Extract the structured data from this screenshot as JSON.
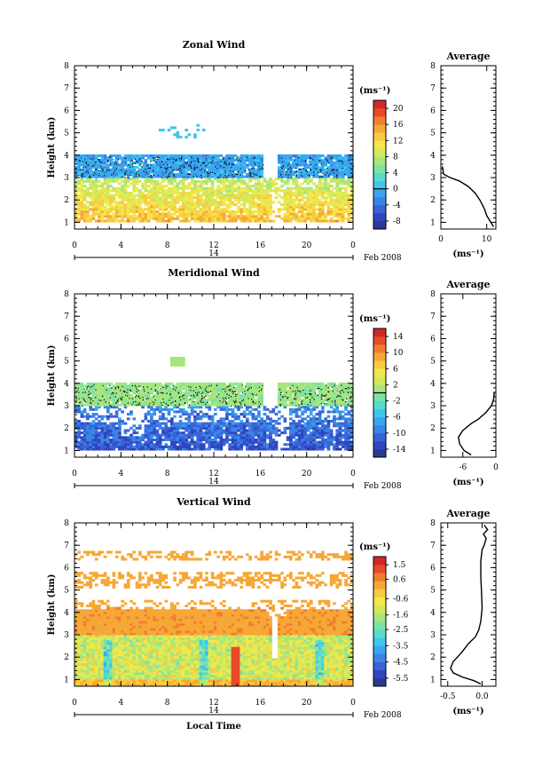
{
  "chart_data": [
    {
      "type": "heatmap",
      "title": "Zonal Wind",
      "ylabel": "Height (km)",
      "xlim": [
        0,
        24
      ],
      "ylim": [
        0.7,
        8
      ],
      "x_ticks": [
        "0",
        "4",
        "8",
        "12",
        "16",
        "20",
        "0"
      ],
      "y_ticks": [
        "1",
        "2",
        "3",
        "4",
        "5",
        "6",
        "7",
        "8"
      ],
      "date_tick": "14",
      "date_label": "Feb 2008",
      "colorbar": {
        "unit": "(ms⁻¹)",
        "range": [
          -10,
          22
        ],
        "ticks": [
          "-8",
          "-4",
          "0",
          "4",
          "8",
          "12",
          "16",
          "20"
        ]
      },
      "profile": {
        "title": "Average",
        "xlabel": "(ms⁻¹)",
        "xlim": [
          0,
          12
        ],
        "x_ticks": [
          "0",
          "10"
        ],
        "points": [
          [
            11.5,
            0.8
          ],
          [
            10.9,
            1.0
          ],
          [
            10,
            1.3
          ],
          [
            9.5,
            1.6
          ],
          [
            8.5,
            2.0
          ],
          [
            7.5,
            2.3
          ],
          [
            6,
            2.6
          ],
          [
            4,
            2.85
          ],
          [
            2,
            3.0
          ],
          [
            0.6,
            3.15
          ],
          [
            0.3,
            3.5
          ]
        ]
      }
    },
    {
      "type": "heatmap",
      "title": "Meridional Wind",
      "ylabel": "Height (km)",
      "xlim": [
        0,
        24
      ],
      "ylim": [
        0.7,
        8
      ],
      "x_ticks": [
        "0",
        "4",
        "8",
        "12",
        "16",
        "20",
        "0"
      ],
      "y_ticks": [
        "1",
        "2",
        "3",
        "4",
        "5",
        "6",
        "7",
        "8"
      ],
      "date_tick": "14",
      "date_label": "Feb 2008",
      "colorbar": {
        "unit": "(ms⁻¹)",
        "range": [
          -16,
          16
        ],
        "ticks": [
          "-14",
          "-10",
          "-6",
          "-2",
          "2",
          "6",
          "10",
          "14"
        ]
      },
      "profile": {
        "title": "Average",
        "xlabel": "(ms⁻¹)",
        "xlim": [
          -10,
          0
        ],
        "x_ticks": [
          "-6",
          "0"
        ],
        "points": [
          [
            -4.5,
            0.8
          ],
          [
            -5.8,
            1.0
          ],
          [
            -6.6,
            1.3
          ],
          [
            -6.8,
            1.6
          ],
          [
            -6,
            1.9
          ],
          [
            -4.5,
            2.2
          ],
          [
            -3.2,
            2.4
          ],
          [
            -1.8,
            2.7
          ],
          [
            -0.8,
            3.0
          ],
          [
            -0.4,
            3.3
          ],
          [
            -0.3,
            3.6
          ]
        ]
      }
    },
    {
      "type": "heatmap",
      "title": "Vertical Wind",
      "ylabel": "Height (km)",
      "xlabel": "Local Time",
      "xlim": [
        0,
        24
      ],
      "ylim": [
        0.7,
        8
      ],
      "x_ticks": [
        "0",
        "4",
        "8",
        "12",
        "16",
        "20",
        "0"
      ],
      "y_ticks": [
        "1",
        "2",
        "3",
        "4",
        "5",
        "6",
        "7",
        "8"
      ],
      "date_tick": "14",
      "date_label": "Feb 2008",
      "colorbar": {
        "unit": "(ms⁻¹)",
        "range": [
          -6.0,
          2.0
        ],
        "ticks": [
          "-5.5",
          "-4.5",
          "-3.5",
          "-2.5",
          "-1.6",
          "-0.6",
          "0.6",
          "1.5"
        ]
      },
      "profile": {
        "title": "Average",
        "xlabel": "(ms⁻¹)",
        "xlim": [
          -0.6,
          0.2
        ],
        "x_ticks": [
          "-0.5",
          "0.0"
        ],
        "points": [
          [
            -0.02,
            0.8
          ],
          [
            -0.12,
            0.95
          ],
          [
            -0.28,
            1.1
          ],
          [
            -0.42,
            1.3
          ],
          [
            -0.46,
            1.5
          ],
          [
            -0.42,
            1.8
          ],
          [
            -0.3,
            2.2
          ],
          [
            -0.2,
            2.6
          ],
          [
            -0.1,
            2.9
          ],
          [
            -0.05,
            3.2
          ],
          [
            -0.02,
            3.6
          ],
          [
            0.0,
            4.2
          ],
          [
            -0.01,
            5.0
          ],
          [
            -0.02,
            5.6
          ],
          [
            -0.02,
            6.3
          ],
          [
            0.0,
            6.8
          ],
          [
            0.03,
            7.0
          ],
          [
            0.06,
            7.3
          ],
          [
            0.02,
            7.5
          ],
          [
            0.08,
            7.7
          ],
          [
            0.03,
            7.9
          ]
        ]
      }
    }
  ]
}
